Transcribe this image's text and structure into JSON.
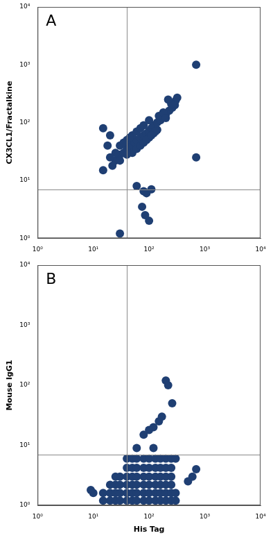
{
  "chart_data": [
    {
      "type": "scatter",
      "title": "A",
      "y_label": "CX3CL1/Fractalkine",
      "color": "#1f3f73",
      "log": true,
      "grid": false,
      "xlim": [
        1,
        10000
      ],
      "ylim": [
        1,
        10000
      ],
      "xticks": [
        {
          "value": 1,
          "label": "10⁰"
        },
        {
          "value": 10,
          "label": "10¹"
        },
        {
          "value": 100,
          "label": "10²"
        },
        {
          "value": 1000,
          "label": "10³"
        },
        {
          "value": 10000,
          "label": "10⁴"
        }
      ],
      "yticks": [
        {
          "value": 1,
          "label": "10⁰"
        },
        {
          "value": 10,
          "label": "10¹"
        },
        {
          "value": 100,
          "label": "10²"
        },
        {
          "value": 1000,
          "label": "10³"
        },
        {
          "value": 10000,
          "label": "10⁴"
        }
      ],
      "quadrant_x": 40,
      "quadrant_y": 7,
      "x": [
        25,
        30,
        35,
        40,
        45,
        50,
        55,
        60,
        70,
        80,
        90,
        100,
        110,
        120,
        140,
        160,
        180,
        200,
        230,
        260,
        290,
        300,
        250,
        40,
        50,
        60,
        70,
        80,
        100,
        50,
        60,
        70,
        80,
        100,
        120,
        140,
        30,
        35,
        45,
        25,
        20,
        22,
        150,
        180,
        200,
        130,
        90,
        110,
        40,
        30,
        700,
        700,
        60,
        90,
        75,
        100,
        85,
        15,
        320,
        220,
        18,
        20,
        15,
        30,
        110,
        80
      ],
      "values": [
        22,
        28,
        30,
        35,
        38,
        42,
        45,
        50,
        55,
        60,
        65,
        72,
        80,
        90,
        100,
        110,
        125,
        140,
        160,
        180,
        200,
        240,
        210,
        50,
        60,
        70,
        80,
        90,
        110,
        30,
        35,
        40,
        45,
        55,
        65,
        75,
        40,
        45,
        55,
        30,
        25,
        18,
        130,
        150,
        120,
        70,
        50,
        60,
        28,
        22,
        1000,
        25,
        8,
        6,
        3.5,
        2,
        2.5,
        80,
        270,
        250,
        40,
        60,
        15,
        1.2,
        7,
        6.5
      ]
    },
    {
      "type": "scatter",
      "title": "B",
      "x_label": "His Tag",
      "y_label": "Mouse IgG1",
      "color": "#1f3f73",
      "log": true,
      "grid": false,
      "xlim": [
        1,
        10000
      ],
      "ylim": [
        1,
        10000
      ],
      "xticks": [
        {
          "value": 1,
          "label": "10⁰"
        },
        {
          "value": 10,
          "label": "10¹"
        },
        {
          "value": 100,
          "label": "10²"
        },
        {
          "value": 1000,
          "label": "10³"
        },
        {
          "value": 10000,
          "label": "10⁴"
        }
      ],
      "yticks": [
        {
          "value": 1,
          "label": "10⁰"
        },
        {
          "value": 10,
          "label": "10¹"
        },
        {
          "value": 100,
          "label": "10²"
        },
        {
          "value": 1000,
          "label": "10³"
        },
        {
          "value": 10000,
          "label": "10⁴"
        }
      ],
      "quadrant_x": 40,
      "quadrant_y": 7,
      "x": [
        15,
        20,
        25,
        30,
        40,
        50,
        60,
        80,
        100,
        130,
        160,
        200,
        250,
        300,
        15,
        20,
        25,
        30,
        40,
        50,
        60,
        80,
        100,
        130,
        160,
        200,
        250,
        300,
        20,
        25,
        30,
        40,
        50,
        60,
        80,
        100,
        130,
        160,
        200,
        250,
        25,
        30,
        40,
        50,
        60,
        80,
        100,
        130,
        160,
        200,
        250,
        40,
        50,
        60,
        80,
        100,
        130,
        160,
        200,
        250,
        40,
        50,
        60,
        80,
        100,
        130,
        160,
        200,
        250,
        300,
        200,
        220,
        260,
        150,
        170,
        120,
        100,
        80,
        700,
        600,
        10,
        9,
        500,
        60,
        120
      ],
      "values": [
        1.2,
        1.2,
        1.2,
        1.2,
        1.2,
        1.2,
        1.2,
        1.2,
        1.2,
        1.2,
        1.2,
        1.2,
        1.2,
        1.2,
        1.6,
        1.6,
        1.6,
        1.6,
        1.6,
        1.6,
        1.6,
        1.6,
        1.6,
        1.6,
        1.6,
        1.6,
        1.6,
        1.6,
        2.2,
        2.2,
        2.2,
        2.2,
        2.2,
        2.2,
        2.2,
        2.2,
        2.2,
        2.2,
        2.2,
        2.2,
        3,
        3,
        3,
        3,
        3,
        3,
        3,
        3,
        3,
        3,
        3,
        4.2,
        4.2,
        4.2,
        4.2,
        4.2,
        4.2,
        4.2,
        4.2,
        4.2,
        6,
        6,
        6,
        6,
        6,
        6,
        6,
        6,
        6,
        6,
        120,
        100,
        50,
        25,
        30,
        20,
        18,
        15,
        4,
        3,
        1.6,
        1.8,
        2.5,
        9,
        9
      ]
    }
  ]
}
